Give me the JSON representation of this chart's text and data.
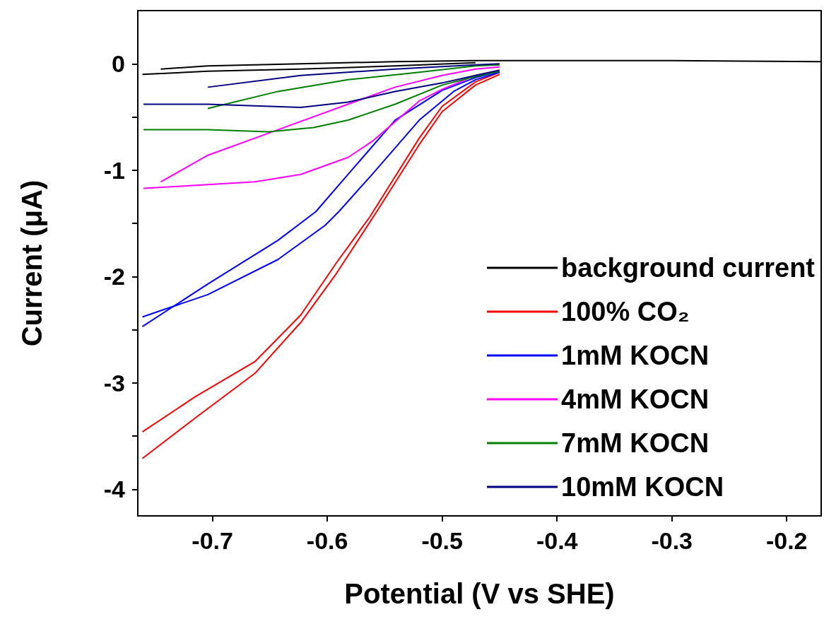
{
  "chart_data": {
    "type": "line",
    "xlabel": "Potential (V vs SHE)",
    "ylabel": "Current (μA)",
    "xlim": [
      -0.765,
      -0.17
    ],
    "ylim": [
      -4.25,
      0.5
    ],
    "xticks": [
      -0.7,
      -0.6,
      -0.5,
      -0.4,
      -0.3,
      -0.2
    ],
    "yticks": [
      0,
      {
        "value": -0.5,
        "label": null
      },
      -1,
      {
        "value": -1.5,
        "label": null
      },
      -2,
      {
        "value": -2.5,
        "label": null
      },
      -3,
      {
        "value": -3.5,
        "label": null
      },
      -4
    ],
    "grid": false,
    "legend": "bottom right",
    "marker": "none",
    "line_style": "solid",
    "series": [
      {
        "name": "background current",
        "color": "#000000",
        "x": [
          -0.761,
          -0.704,
          -0.623,
          -0.541,
          -0.471
        ],
        "values": [
          -0.1,
          -0.07,
          -0.05,
          -0.02,
          0.01
        ]
      },
      {
        "color": "#000000",
        "x": [
          -0.745,
          -0.704,
          -0.623,
          -0.541,
          -0.471,
          -0.4,
          -0.3,
          -0.17
        ],
        "values": [
          -0.05,
          -0.02,
          0.0,
          0.02,
          0.03,
          0.03,
          0.03,
          0.02
        ]
      },
      {
        "name": "100% CO₂",
        "color": "#ff0000",
        "x": [
          -0.761,
          -0.715,
          -0.663,
          -0.623,
          -0.592,
          -0.557,
          -0.52,
          -0.5,
          -0.471,
          -0.45
        ],
        "values": [
          -3.71,
          -3.33,
          -2.91,
          -2.43,
          -1.97,
          -1.39,
          -0.76,
          -0.45,
          -0.2,
          -0.1
        ]
      },
      {
        "color": "#ff0000",
        "x": [
          -0.761,
          -0.715,
          -0.663,
          -0.623,
          -0.592,
          -0.563,
          -0.52,
          -0.5,
          -0.471,
          -0.45
        ],
        "values": [
          -3.46,
          -3.13,
          -2.8,
          -2.36,
          -1.87,
          -1.44,
          -0.7,
          -0.4,
          -0.17,
          -0.08
        ]
      },
      {
        "name": "1mM KOCN",
        "color": "#0000ff",
        "x": [
          -0.761,
          -0.745,
          -0.704,
          -0.643,
          -0.602,
          -0.59,
          -0.561,
          -0.52,
          -0.49,
          -0.471,
          -0.45
        ],
        "values": [
          -2.38,
          -2.32,
          -2.17,
          -1.84,
          -1.52,
          -1.39,
          -1.04,
          -0.53,
          -0.26,
          -0.15,
          -0.08
        ]
      },
      {
        "color": "#0000ff",
        "x": [
          -0.761,
          -0.704,
          -0.643,
          -0.61,
          -0.582,
          -0.541,
          -0.5,
          -0.471,
          -0.45
        ],
        "values": [
          -2.47,
          -2.07,
          -1.66,
          -1.39,
          -1.04,
          -0.53,
          -0.25,
          -0.13,
          -0.07
        ]
      },
      {
        "name": "4mM KOCN",
        "color": "#ff00ff",
        "x": [
          -0.76,
          -0.725,
          -0.663,
          -0.623,
          -0.582,
          -0.561,
          -0.52,
          -0.5,
          -0.471,
          -0.45
        ],
        "values": [
          -1.17,
          -1.15,
          -1.11,
          -1.04,
          -0.88,
          -0.73,
          -0.35,
          -0.24,
          -0.11,
          -0.07
        ]
      },
      {
        "color": "#ff00ff",
        "x": [
          -0.745,
          -0.704,
          -0.643,
          -0.582,
          -0.541,
          -0.5,
          -0.471,
          -0.45
        ],
        "values": [
          -1.11,
          -0.86,
          -0.62,
          -0.38,
          -0.22,
          -0.11,
          -0.05,
          -0.03
        ]
      },
      {
        "name": "7mM KOCN",
        "color": "#008000",
        "x": [
          -0.76,
          -0.704,
          -0.651,
          -0.612,
          -0.582,
          -0.541,
          -0.5,
          -0.471,
          -0.45
        ],
        "values": [
          -0.62,
          -0.62,
          -0.64,
          -0.6,
          -0.53,
          -0.38,
          -0.2,
          -0.12,
          -0.07
        ]
      },
      {
        "color": "#008000",
        "x": [
          -0.704,
          -0.643,
          -0.582,
          -0.52,
          -0.471,
          -0.45
        ],
        "values": [
          -0.42,
          -0.26,
          -0.15,
          -0.08,
          -0.02,
          -0.01
        ]
      },
      {
        "name": "10mM KOCN",
        "color": "#000080",
        "x": [
          -0.76,
          -0.704,
          -0.623,
          -0.582,
          -0.541,
          -0.5,
          -0.471,
          -0.45
        ],
        "values": [
          -0.38,
          -0.38,
          -0.41,
          -0.36,
          -0.26,
          -0.18,
          -0.11,
          -0.06
        ]
      },
      {
        "color": "#000080",
        "x": [
          -0.704,
          -0.623,
          -0.541,
          -0.471,
          -0.45
        ],
        "values": [
          -0.22,
          -0.11,
          -0.05,
          -0.01,
          0.0
        ]
      }
    ]
  }
}
